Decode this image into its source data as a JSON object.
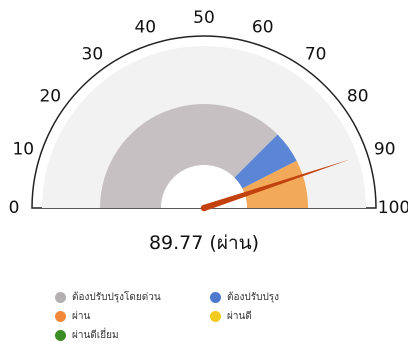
{
  "chart_data": {
    "type": "gauge",
    "min": 0,
    "max": 100,
    "tick_labels": [
      "0",
      "10",
      "20",
      "30",
      "40",
      "50",
      "60",
      "70",
      "80",
      "90",
      "100"
    ],
    "value": 89.77,
    "value_label": "89.77 (ผ่าน)",
    "bands": [
      {
        "name": "ต้องปรับปรุงโดยด่วน",
        "from": 0,
        "to": 75,
        "color": "#c6c0c3"
      },
      {
        "name": "ต้องปรับปรุง",
        "from": 75,
        "to": 85,
        "color": "#5b86d6"
      },
      {
        "name": "ผ่าน",
        "from": 85,
        "to": 100,
        "color": "#f2a95a"
      }
    ],
    "legend": [
      {
        "label": "ต้องปรับปรุงโดยด่วน",
        "color": "#b4b0b2"
      },
      {
        "label": "ต้องปรับปรุง",
        "color": "#4f79cc"
      },
      {
        "label": "ผ่าน",
        "color": "#f08a3a"
      },
      {
        "label": "ผ่านดี",
        "color": "#f2cb1f"
      },
      {
        "label": "ผ่านดีเยี่ยม",
        "color": "#3a8d22"
      }
    ],
    "needle_color": "#c2410c"
  }
}
